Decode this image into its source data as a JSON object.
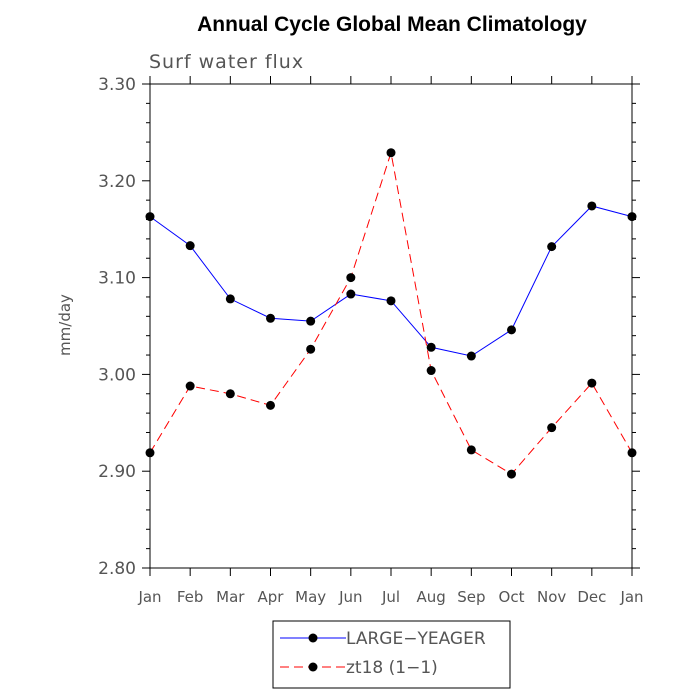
{
  "chart_data": {
    "type": "line",
    "title": "Annual Cycle Global Mean Climatology",
    "subtitle": "Surf water flux",
    "xlabel": "",
    "ylabel": "mm/day",
    "categories": [
      "Jan",
      "Feb",
      "Mar",
      "Apr",
      "May",
      "Jun",
      "Jul",
      "Aug",
      "Sep",
      "Oct",
      "Nov",
      "Dec",
      "Jan"
    ],
    "ylim": [
      2.8,
      3.3
    ],
    "yticks": [
      "2.80",
      "2.90",
      "3.00",
      "3.10",
      "3.20",
      "3.30"
    ],
    "grid": false,
    "legend_position": "bottom-center",
    "series": [
      {
        "name": "LARGE−YEAGER",
        "color": "#0000ff",
        "dash": "solid",
        "marker": "dot",
        "values": [
          3.163,
          3.133,
          3.078,
          3.058,
          3.055,
          3.083,
          3.076,
          3.028,
          3.019,
          3.046,
          3.132,
          3.174,
          3.163
        ]
      },
      {
        "name": "zt18 (1−1)",
        "color": "#ff0000",
        "dash": "dashed",
        "marker": "dot",
        "values": [
          2.919,
          2.988,
          2.98,
          2.968,
          3.026,
          3.1,
          3.229,
          3.004,
          2.922,
          2.897,
          2.945,
          2.991,
          2.919
        ]
      }
    ]
  }
}
